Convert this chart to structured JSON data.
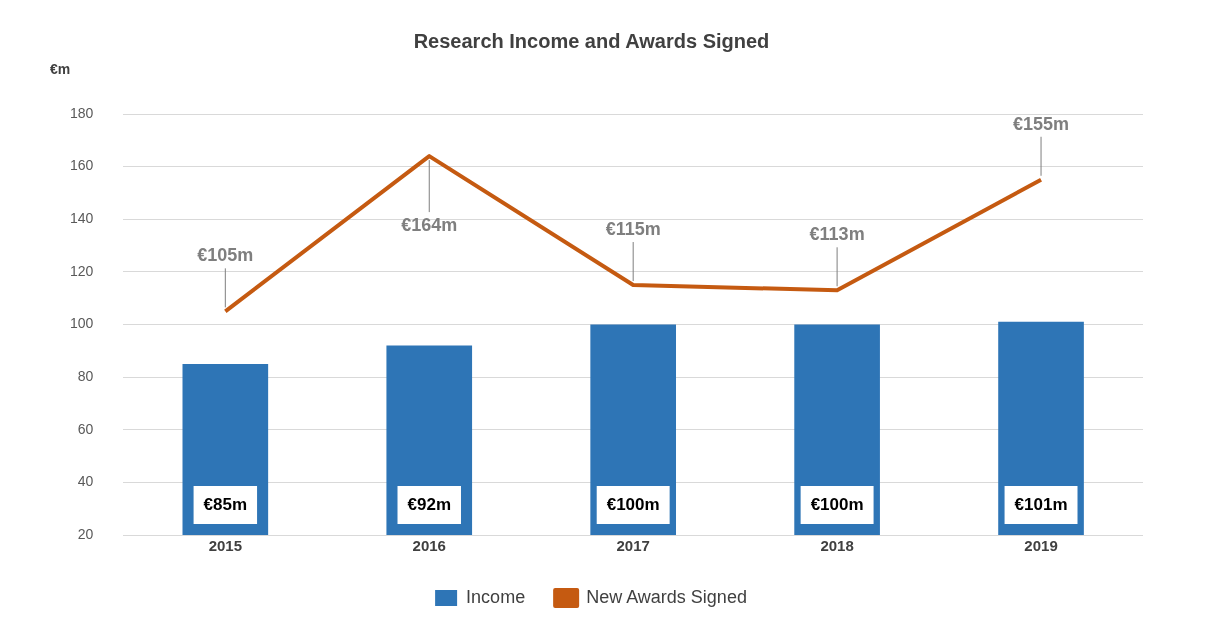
{
  "chart_data": {
    "type": "bar",
    "title": "Research Income and Awards Signed",
    "ylabel": "€m",
    "categories": [
      "2015",
      "2016",
      "2017",
      "2018",
      "2019"
    ],
    "series": [
      {
        "name": "Income",
        "color": "#2e75b6",
        "values": [
          85,
          92,
          100,
          100,
          101
        ],
        "value_labels": [
          "€85m",
          "€92m",
          "€100m",
          "€100m",
          "€101m"
        ]
      },
      {
        "name": "New Awards Signed",
        "type": "line",
        "color": "#c55a11",
        "values": [
          105,
          164,
          115,
          113,
          155
        ],
        "value_labels": [
          "€105m",
          "€164m",
          "€115m",
          "€113m",
          "€155m"
        ]
      }
    ],
    "ylim": [
      20,
      180
    ],
    "yticks": [
      20,
      40,
      60,
      80,
      100,
      120,
      140,
      160,
      180
    ],
    "grid": "y",
    "legend": "bottom",
    "marker": "none",
    "line_style": "solid"
  }
}
